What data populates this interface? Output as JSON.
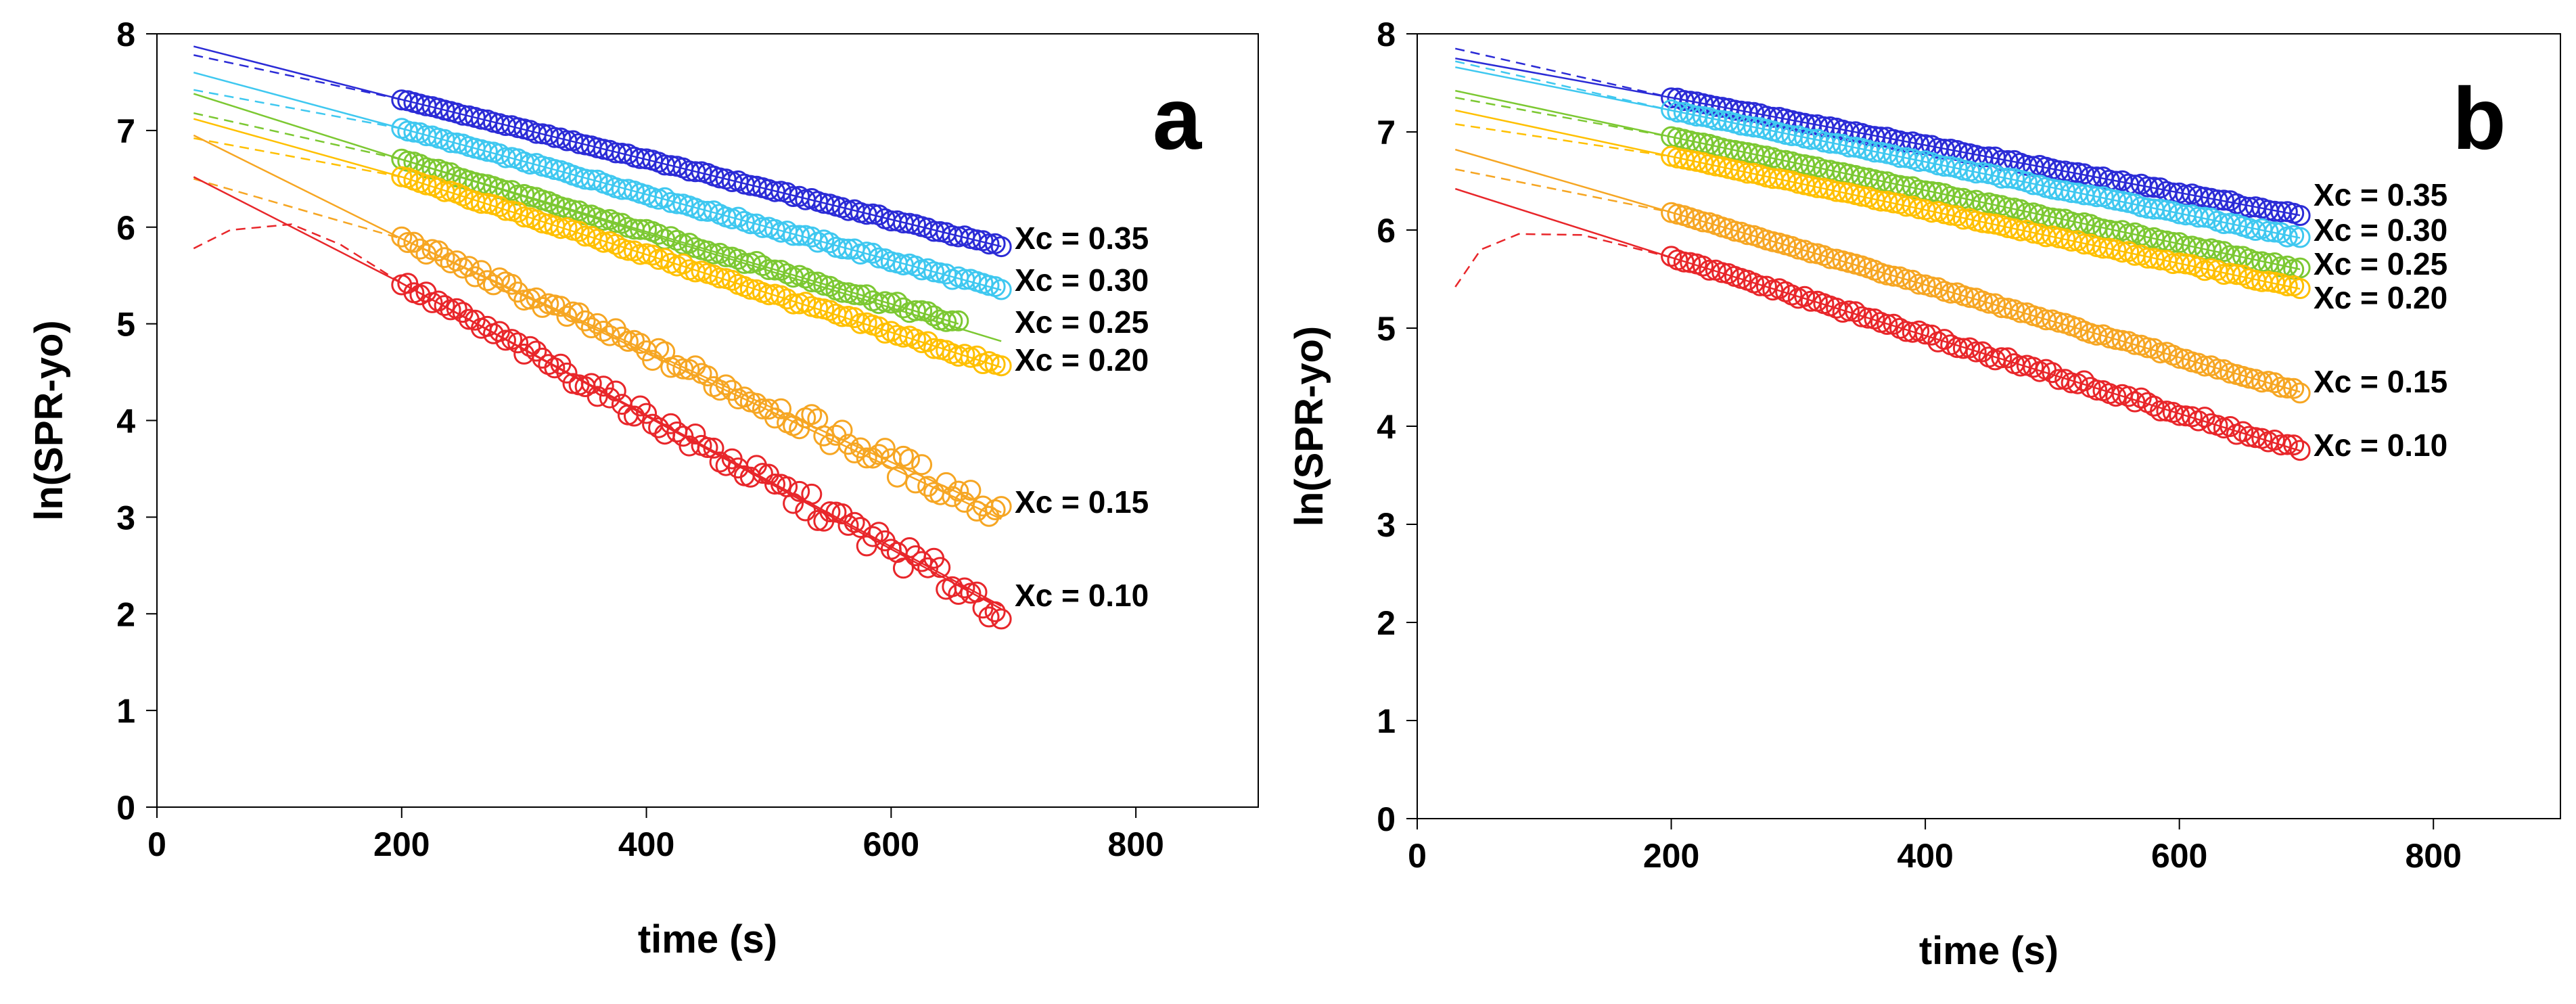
{
  "chart_data": [
    {
      "type": "scatter",
      "panel": "a",
      "xlabel": "time (s)",
      "ylabel": "ln(SPR-yo)",
      "xlim": [
        0,
        900
      ],
      "ylim": [
        0,
        8
      ],
      "xticks": [
        0,
        200,
        400,
        600,
        800
      ],
      "yticks": [
        0,
        1,
        2,
        3,
        4,
        5,
        6,
        7,
        8
      ],
      "series": [
        {
          "name": "Xc =  0.35",
          "label": "Xc =  0.35",
          "color": "#2b2bd6",
          "x_start": 200,
          "x_end": 690,
          "y_start": 7.32,
          "y_end": 5.8,
          "noise": 0.02,
          "fit_solid": [
            [
              30,
              7.87
            ],
            [
              200,
              7.32
            ]
          ],
          "fit_dashed": [
            [
              30,
              7.78
            ],
            [
              200,
              7.32
            ]
          ]
        },
        {
          "name": "Xc =  0.30",
          "label": "Xc =  0.30",
          "color": "#3fc8f0",
          "x_start": 200,
          "x_end": 690,
          "y_start": 7.02,
          "y_end": 5.35,
          "noise": 0.03,
          "fit_solid": [
            [
              30,
              7.6
            ],
            [
              200,
              7.02
            ]
          ],
          "fit_dashed": [
            [
              30,
              7.42
            ],
            [
              200,
              7.02
            ]
          ]
        },
        {
          "name": "Xc =  0.25",
          "label": "Xc =  0.25",
          "color": "#7cc832",
          "x_start": 200,
          "x_end": 655,
          "y_start": 6.7,
          "y_end": 5.0,
          "noise": 0.04,
          "fit_solid": [
            [
              30,
              7.38
            ],
            [
              200,
              6.7
            ],
            [
              690,
              4.82
            ]
          ],
          "fit_dashed": [
            [
              30,
              7.18
            ],
            [
              200,
              6.7
            ]
          ]
        },
        {
          "name": "Xc = 0.20",
          "label": "Xc = 0.20",
          "color": "#ffc000",
          "x_start": 200,
          "x_end": 690,
          "y_start": 6.52,
          "y_end": 4.55,
          "noise": 0.04,
          "fit_solid": [
            [
              30,
              7.12
            ],
            [
              200,
              6.52
            ]
          ],
          "fit_dashed": [
            [
              30,
              6.92
            ],
            [
              200,
              6.52
            ]
          ]
        },
        {
          "name": "Xc = 0.15",
          "label": "Xc = 0.15",
          "color": "#f6a623",
          "x_start": 200,
          "x_end": 690,
          "y_start": 5.88,
          "y_end": 3.05,
          "noise": 0.15,
          "fit_solid": [
            [
              30,
              6.95
            ],
            [
              200,
              5.88
            ],
            [
              690,
              2.98
            ]
          ],
          "fit_dashed": [
            [
              30,
              6.5
            ],
            [
              200,
              5.88
            ]
          ]
        },
        {
          "name": "Xc = 0.10",
          "label": "Xc = 0.10",
          "color": "#e8262a",
          "x_start": 200,
          "x_end": 690,
          "y_start": 5.42,
          "y_end": 2.05,
          "noise": 0.16,
          "fit_solid": [
            [
              30,
              6.52
            ],
            [
              200,
              5.42
            ],
            [
              690,
              2.08
            ]
          ],
          "fit_dashed": [
            [
              30,
              5.78
            ],
            [
              60,
              5.97
            ],
            [
              110,
              6.03
            ],
            [
              150,
              5.82
            ],
            [
              200,
              5.42
            ]
          ]
        }
      ]
    },
    {
      "type": "scatter",
      "panel": "b",
      "xlabel": "time (s)",
      "ylabel": "ln(SPR-yo)",
      "xlim": [
        0,
        900
      ],
      "ylim": [
        0,
        8
      ],
      "xticks": [
        0,
        200,
        400,
        600,
        800
      ],
      "yticks": [
        0,
        1,
        2,
        3,
        4,
        5,
        6,
        7,
        8
      ],
      "series": [
        {
          "name": "Xc =  0.35",
          "label": "Xc =  0.35",
          "color": "#2b2bd6",
          "x_start": 200,
          "x_end": 695,
          "y_start": 7.35,
          "y_end": 6.15,
          "noise": 0.02,
          "fit_solid": [
            [
              30,
              7.75
            ],
            [
              200,
              7.35
            ]
          ],
          "fit_dashed": [
            [
              30,
              7.85
            ],
            [
              200,
              7.35
            ]
          ]
        },
        {
          "name": "Xc = 0.30",
          "label": "Xc = 0.30",
          "color": "#3fc8f0",
          "x_start": 200,
          "x_end": 695,
          "y_start": 7.22,
          "y_end": 5.92,
          "noise": 0.02,
          "fit_solid": [
            [
              30,
              7.66
            ],
            [
              200,
              7.22
            ]
          ],
          "fit_dashed": [
            [
              30,
              7.72
            ],
            [
              200,
              7.22
            ]
          ]
        },
        {
          "name": "Xc = 0.25",
          "label": "Xc = 0.25",
          "color": "#7cc832",
          "x_start": 200,
          "x_end": 695,
          "y_start": 6.95,
          "y_end": 5.6,
          "noise": 0.02,
          "fit_solid": [
            [
              30,
              7.42
            ],
            [
              200,
              6.95
            ]
          ],
          "fit_dashed": [
            [
              30,
              7.35
            ],
            [
              200,
              6.95
            ]
          ]
        },
        {
          "name": "Xc =  0.20",
          "label": "Xc =  0.20",
          "color": "#ffc000",
          "x_start": 200,
          "x_end": 695,
          "y_start": 6.75,
          "y_end": 5.4,
          "noise": 0.02,
          "fit_solid": [
            [
              30,
              7.22
            ],
            [
              200,
              6.75
            ]
          ],
          "fit_dashed": [
            [
              30,
              7.08
            ],
            [
              200,
              6.75
            ]
          ]
        },
        {
          "name": "Xc = 0.15",
          "label": "Xc = 0.15",
          "color": "#f6a623",
          "x_start": 200,
          "x_end": 695,
          "y_start": 6.18,
          "y_end": 4.35,
          "noise": 0.02,
          "fit_solid": [
            [
              30,
              6.82
            ],
            [
              200,
              6.18
            ]
          ],
          "fit_dashed": [
            [
              30,
              6.62
            ],
            [
              200,
              6.18
            ]
          ]
        },
        {
          "name": "Xc = 0.10",
          "label": "Xc = 0.10",
          "color": "#e8262a",
          "x_start": 200,
          "x_end": 695,
          "y_start": 5.72,
          "y_end": 3.75,
          "noise": 0.05,
          "fit_solid": [
            [
              30,
              6.42
            ],
            [
              200,
              5.72
            ]
          ],
          "fit_dashed": [
            [
              30,
              5.42
            ],
            [
              50,
              5.8
            ],
            [
              80,
              5.96
            ],
            [
              130,
              5.95
            ],
            [
              200,
              5.72
            ]
          ]
        }
      ]
    }
  ]
}
